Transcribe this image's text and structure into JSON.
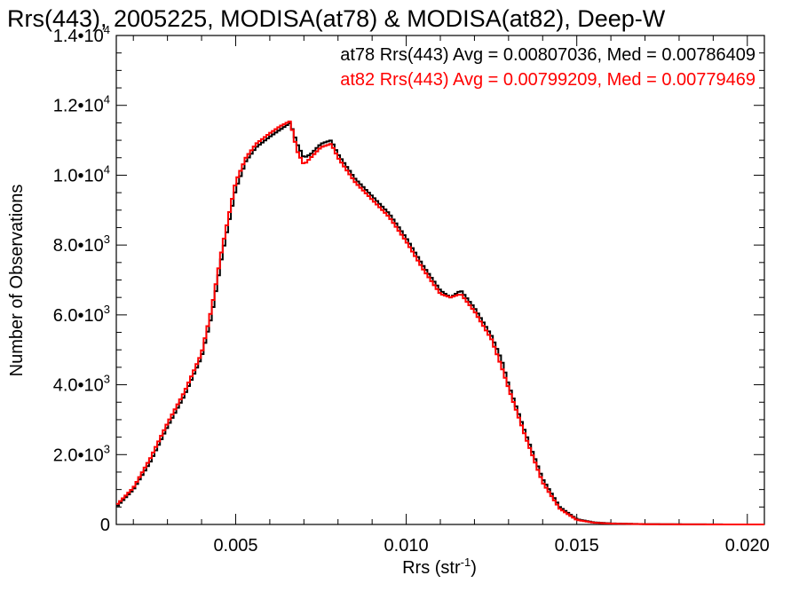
{
  "chart_data": {
    "type": "line",
    "title": "Rrs(443), 2005225, MODISA(at78) & MODISA(at82), Deep-W",
    "xlabel": "Rrs (str",
    "xlabel_sup": "-1",
    "xlabel_end": ")",
    "ylabel": "Number of Observations",
    "xlim": [
      0.0015,
      0.0205
    ],
    "ylim": [
      0,
      14000
    ],
    "grid": false,
    "legend_position": "top-right",
    "x_ticks": [
      {
        "value": 0.005,
        "label": "0.005"
      },
      {
        "value": 0.01,
        "label": "0.010"
      },
      {
        "value": 0.015,
        "label": "0.015"
      },
      {
        "value": 0.02,
        "label": "0.020"
      }
    ],
    "y_ticks": [
      {
        "value": 0,
        "mantissa": "0",
        "exp": ""
      },
      {
        "value": 2000,
        "mantissa": "2.0•10",
        "exp": "3"
      },
      {
        "value": 4000,
        "mantissa": "4.0•10",
        "exp": "3"
      },
      {
        "value": 6000,
        "mantissa": "6.0•10",
        "exp": "3"
      },
      {
        "value": 8000,
        "mantissa": "8.0•10",
        "exp": "3"
      },
      {
        "value": 10000,
        "mantissa": "1.0•10",
        "exp": "4"
      },
      {
        "value": 12000,
        "mantissa": "1.2•10",
        "exp": "4"
      },
      {
        "value": 14000,
        "mantissa": "1.4•10",
        "exp": "4"
      }
    ],
    "series": [
      {
        "name": "at78",
        "color": "#000000",
        "stats_text": "at78 Rrs(443) Avg = 0.00807036, Med = 0.00786409",
        "x": [
          0.0015,
          0.002,
          0.0025,
          0.003,
          0.0035,
          0.004,
          0.0043,
          0.0046,
          0.005,
          0.0053,
          0.0056,
          0.006,
          0.0063,
          0.0066,
          0.0068,
          0.007,
          0.0072,
          0.0075,
          0.0078,
          0.008,
          0.0085,
          0.009,
          0.0095,
          0.01,
          0.0105,
          0.011,
          0.0113,
          0.0116,
          0.012,
          0.0125,
          0.0128,
          0.013,
          0.0135,
          0.014,
          0.0145,
          0.015,
          0.0155,
          0.016,
          0.017,
          0.018,
          0.019,
          0.0205
        ],
        "y": [
          500,
          1000,
          1800,
          2800,
          3700,
          4800,
          6000,
          7700,
          9600,
          10400,
          10800,
          11100,
          11300,
          11500,
          10900,
          10500,
          10600,
          10900,
          11000,
          10600,
          9900,
          9400,
          8900,
          8200,
          7400,
          6700,
          6500,
          6700,
          6200,
          5400,
          4700,
          4000,
          2600,
          1300,
          500,
          150,
          60,
          30,
          10,
          5,
          2,
          0
        ]
      },
      {
        "name": "at82",
        "color": "#ff0000",
        "stats_text": "at82 Rrs(443) Avg = 0.00799209, Med = 0.00779469",
        "x": [
          0.0015,
          0.002,
          0.0025,
          0.003,
          0.0035,
          0.004,
          0.0043,
          0.0046,
          0.005,
          0.0053,
          0.0056,
          0.006,
          0.0063,
          0.0066,
          0.0068,
          0.007,
          0.0072,
          0.0075,
          0.0078,
          0.008,
          0.0085,
          0.009,
          0.0095,
          0.01,
          0.0105,
          0.011,
          0.0113,
          0.0116,
          0.012,
          0.0125,
          0.0128,
          0.013,
          0.0135,
          0.014,
          0.0145,
          0.015,
          0.0155,
          0.016,
          0.017,
          0.018,
          0.019,
          0.0205
        ],
        "y": [
          550,
          1050,
          1900,
          2900,
          3800,
          4900,
          6200,
          7900,
          9800,
          10500,
          10900,
          11200,
          11400,
          11550,
          10700,
          10300,
          10500,
          10800,
          10900,
          10500,
          9800,
          9300,
          8800,
          8100,
          7300,
          6600,
          6500,
          6600,
          6100,
          5300,
          4500,
          3900,
          2500,
          1200,
          450,
          130,
          50,
          25,
          8,
          4,
          1,
          0
        ]
      }
    ]
  }
}
